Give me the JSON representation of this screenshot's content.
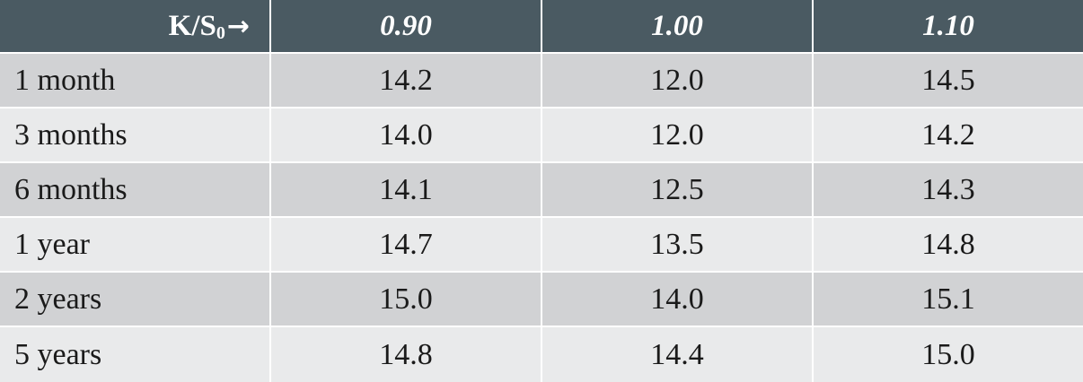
{
  "table": {
    "header": {
      "corner_main": "K/S",
      "corner_sub": "0",
      "corner_arrow": "→",
      "columns": [
        "0.90",
        "1.00",
        "1.10"
      ]
    },
    "rows": [
      {
        "label": "1 month",
        "values": [
          "14.2",
          "12.0",
          "14.5"
        ]
      },
      {
        "label": "3 months",
        "values": [
          "14.0",
          "12.0",
          "14.2"
        ]
      },
      {
        "label": "6 months",
        "values": [
          "14.1",
          "12.5",
          "14.3"
        ]
      },
      {
        "label": "1 year",
        "values": [
          "14.7",
          "13.5",
          "14.8"
        ]
      },
      {
        "label": "2 years",
        "values": [
          "15.0",
          "14.0",
          "15.1"
        ]
      },
      {
        "label": "5 years",
        "values": [
          "14.8",
          "14.4",
          "15.0"
        ]
      }
    ]
  },
  "colors": {
    "header_bg": "#4a5a62",
    "header_text": "#ffffff",
    "row_dark": "#d1d2d4",
    "row_light": "#e9eaeb"
  }
}
